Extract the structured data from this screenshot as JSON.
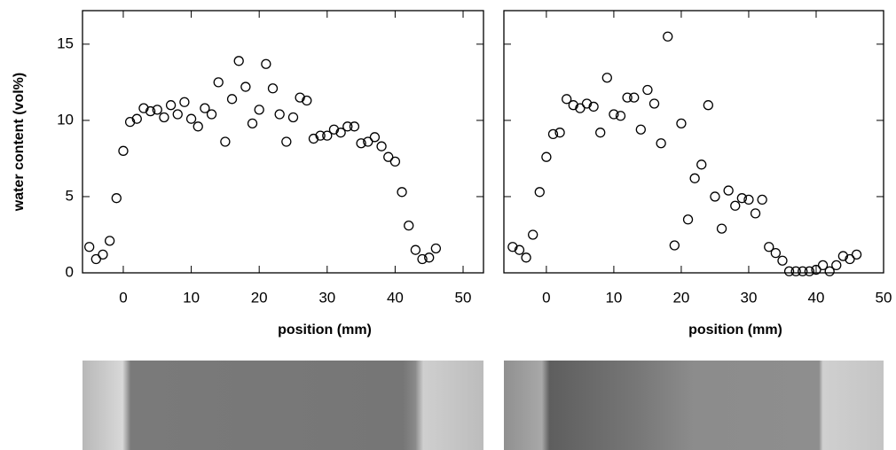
{
  "chart_data": [
    {
      "type": "scatter",
      "xlabel": "position (mm)",
      "ylabel": "water content (vol%)",
      "x": [
        -5,
        -4,
        -3,
        -2,
        -1,
        0,
        1,
        2,
        3,
        4,
        5,
        6,
        7,
        8,
        9,
        10,
        11,
        12,
        13,
        14,
        15,
        16,
        17,
        18,
        19,
        20,
        21,
        22,
        23,
        24,
        25,
        26,
        27,
        28,
        29,
        30,
        31,
        32,
        33,
        34,
        35,
        36,
        37,
        38,
        39,
        40,
        41,
        42,
        43,
        44,
        45,
        46
      ],
      "values": [
        1.7,
        0.9,
        1.2,
        2.1,
        4.9,
        8.0,
        9.9,
        10.1,
        10.8,
        10.6,
        10.7,
        10.2,
        11.0,
        10.4,
        11.2,
        10.1,
        9.6,
        10.8,
        10.4,
        12.5,
        8.6,
        11.4,
        13.9,
        12.2,
        9.8,
        10.7,
        13.7,
        12.1,
        10.4,
        8.6,
        10.2,
        11.5,
        11.3,
        8.8,
        9.0,
        9.0,
        9.4,
        9.2,
        9.6,
        9.6,
        8.5,
        8.6,
        8.9,
        8.3,
        7.6,
        7.3,
        5.3,
        3.1,
        1.5,
        0.9,
        1.0,
        1.6
      ],
      "color": "#000000",
      "xlim": [
        -6,
        53
      ],
      "ylim": [
        0,
        17.2
      ],
      "xticks": [
        0,
        10,
        20,
        30,
        40,
        50
      ],
      "yticks": [
        0,
        5,
        10,
        15
      ],
      "ytick_labels": true
    },
    {
      "type": "scatter",
      "xlabel": "position (mm)",
      "x": [
        -5,
        -4,
        -3,
        -2,
        -1,
        0,
        1,
        2,
        3,
        4,
        5,
        6,
        7,
        8,
        9,
        10,
        11,
        12,
        13,
        14,
        15,
        16,
        17,
        18,
        19,
        20,
        21,
        22,
        23,
        24,
        25,
        26,
        27,
        28,
        29,
        30,
        31,
        32,
        33,
        34,
        35,
        36,
        37,
        38,
        39,
        40,
        41,
        42,
        43,
        44,
        45,
        46
      ],
      "values": [
        1.7,
        1.5,
        1.0,
        2.5,
        5.3,
        7.6,
        9.1,
        9.2,
        11.4,
        11.0,
        10.8,
        11.1,
        10.9,
        9.2,
        12.8,
        10.4,
        10.3,
        11.5,
        11.5,
        9.4,
        12.0,
        11.1,
        8.5,
        15.5,
        1.8,
        9.8,
        3.5,
        6.2,
        7.1,
        11.0,
        5.0,
        2.9,
        5.4,
        4.4,
        4.9,
        4.8,
        3.9,
        4.8,
        1.7,
        1.3,
        0.8,
        0.1,
        0.1,
        0.1,
        0.1,
        0.2,
        0.5,
        0.1,
        0.5,
        1.1,
        0.9,
        1.2
      ],
      "color": "#000000",
      "xlim": [
        -6.3,
        50
      ],
      "ylim": [
        0,
        17.2
      ],
      "xticks": [
        0,
        10,
        20,
        30,
        40,
        50
      ],
      "yticks": [
        0,
        5,
        10,
        15
      ],
      "ytick_labels": false
    }
  ]
}
